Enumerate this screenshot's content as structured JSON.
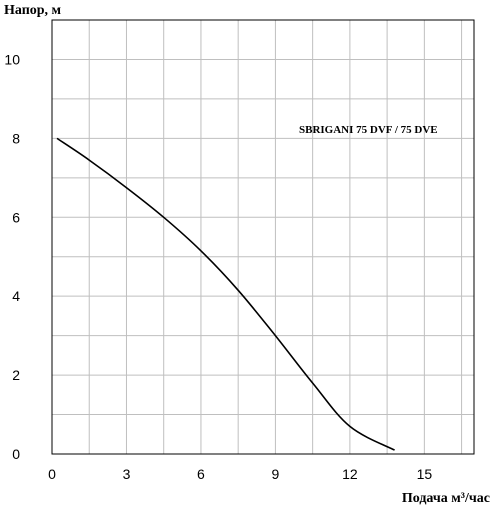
{
  "chart_data": {
    "type": "line",
    "title": "",
    "ylabel": "Напор, м",
    "xlabel": "Подача м³/час",
    "xlim": [
      0,
      17
    ],
    "ylim": [
      0,
      11
    ],
    "xticks": [
      0,
      3,
      6,
      9,
      12,
      15
    ],
    "xtick_labels": [
      "0",
      "3",
      "6",
      "9",
      "12",
      "15"
    ],
    "yticks": [
      0,
      2,
      4,
      6,
      8,
      10
    ],
    "ytick_labels": [
      "0",
      "2",
      "4",
      "6",
      "8",
      "10"
    ],
    "x_grid_step": 1.5,
    "y_grid_step": 1,
    "grid": true,
    "series": [
      {
        "name": "SBRIGANI 75 DVF / 75 DVE",
        "x": [
          0.2,
          1.5,
          3,
          4.5,
          6,
          7.5,
          9,
          10.5,
          12,
          13.8
        ],
        "y": [
          8.0,
          7.45,
          6.75,
          6.0,
          5.15,
          4.15,
          3.0,
          1.8,
          0.7,
          0.1
        ]
      }
    ]
  }
}
